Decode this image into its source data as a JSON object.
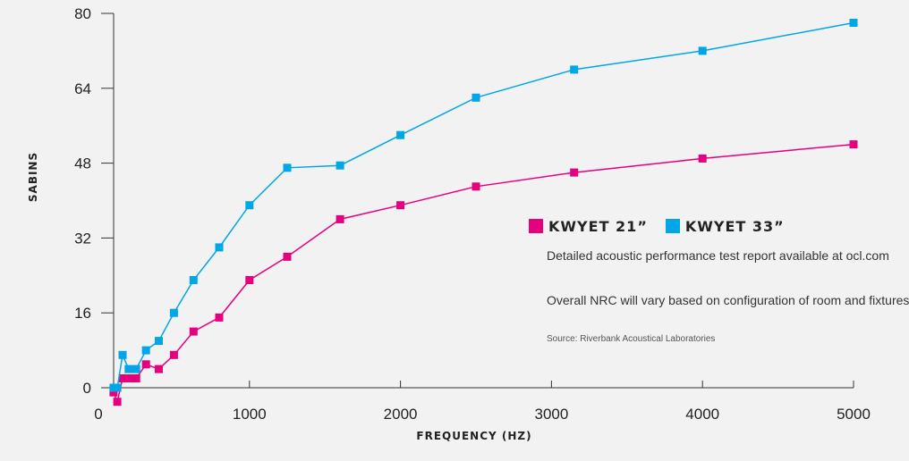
{
  "chart_data": {
    "type": "line",
    "title": "",
    "xlabel": "FREQUENCY (HZ)",
    "ylabel": "SABINS",
    "xlim": [
      0,
      5000
    ],
    "ylim": [
      0,
      80
    ],
    "xticks": [
      "0",
      "1000",
      "2000",
      "3000",
      "4000",
      "5000"
    ],
    "yticks": [
      "0",
      "16",
      "32",
      "48",
      "64",
      "80"
    ],
    "grid": false,
    "legend_placement": "right",
    "series": [
      {
        "name": "KWYET 21”",
        "color": "#e6007e",
        "x": [
          100,
          125,
          160,
          200,
          250,
          315,
          400,
          500,
          630,
          800,
          1000,
          1250,
          1600,
          2000,
          2500,
          3150,
          4000,
          5000
        ],
        "y": [
          -1,
          -3,
          2,
          2,
          2,
          5,
          4,
          7,
          12,
          15,
          23,
          28,
          36,
          39,
          43,
          46,
          49,
          52
        ]
      },
      {
        "name": "KWYET 33”",
        "color": "#00a6e6",
        "x": [
          100,
          125,
          160,
          200,
          250,
          315,
          400,
          500,
          630,
          800,
          1000,
          1250,
          1600,
          2000,
          2500,
          3150,
          4000,
          5000
        ],
        "y": [
          0,
          0,
          7,
          4,
          4,
          8,
          10,
          16,
          23,
          30,
          39,
          47,
          47.5,
          54,
          62,
          68,
          72,
          78
        ]
      }
    ]
  },
  "notes": {
    "report": "Detailed acoustic performance test report available at ocl.com",
    "nrc": "Overall NRC will vary based on configuration of room and fixtures.",
    "source": "Source: Riverbank Acoustical Laboratories"
  }
}
